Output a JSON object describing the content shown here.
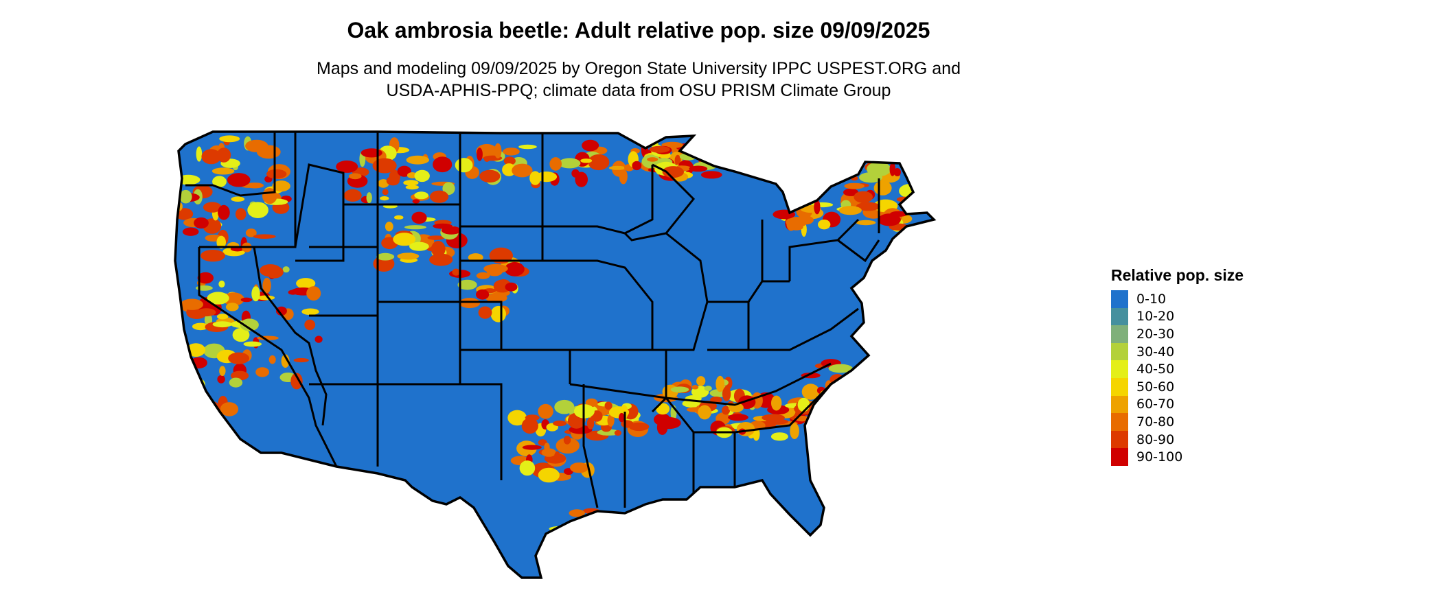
{
  "title": "Oak ambrosia beetle: Adult relative pop. size 09/09/2025",
  "subtitle_line1": "Maps and modeling 09/09/2025 by Oregon State University IPPC USPEST.ORG and",
  "subtitle_line2": "USDA-APHIS-PPQ; climate data from OSU PRISM Climate Group",
  "legend": {
    "title": "Relative pop. size",
    "items": [
      {
        "label": "0-10",
        "color": "#1f72cc"
      },
      {
        "label": "10-20",
        "color": "#45909e"
      },
      {
        "label": "20-30",
        "color": "#7fb07a"
      },
      {
        "label": "30-40",
        "color": "#b3d13a"
      },
      {
        "label": "40-50",
        "color": "#e4ef18"
      },
      {
        "label": "50-60",
        "color": "#f5d500"
      },
      {
        "label": "60-70",
        "color": "#eea200"
      },
      {
        "label": "70-80",
        "color": "#e86c00"
      },
      {
        "label": "80-90",
        "color": "#dd3a00"
      },
      {
        "label": "90-100",
        "color": "#d00000"
      }
    ]
  }
}
